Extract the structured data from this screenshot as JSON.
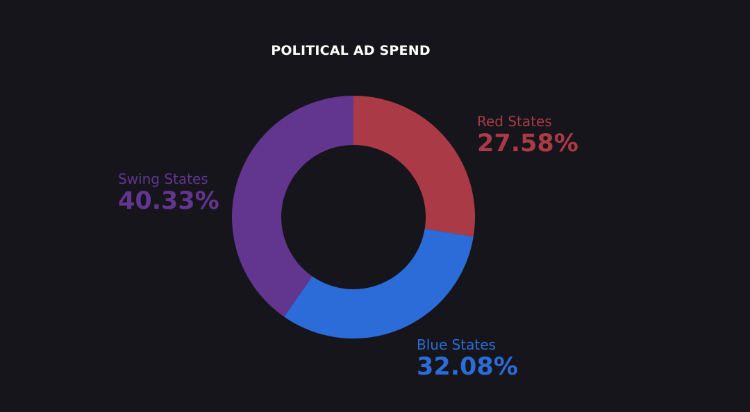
{
  "chart_data": {
    "type": "pie",
    "variant": "donut",
    "title": "POLITICAL AD SPEND",
    "slices": [
      {
        "label": "Red States",
        "value": 27.58,
        "display": "27.58%",
        "color": "#aa3a46"
      },
      {
        "label": "Blue States",
        "value": 32.08,
        "display": "32.08%",
        "color": "#2b6cd8"
      },
      {
        "label": "Swing States",
        "value": 40.33,
        "display": "40.33%",
        "color": "#62358f"
      }
    ],
    "start": "12 o'clock",
    "direction": "clockwise",
    "legend": "none (labels beside slices)"
  }
}
